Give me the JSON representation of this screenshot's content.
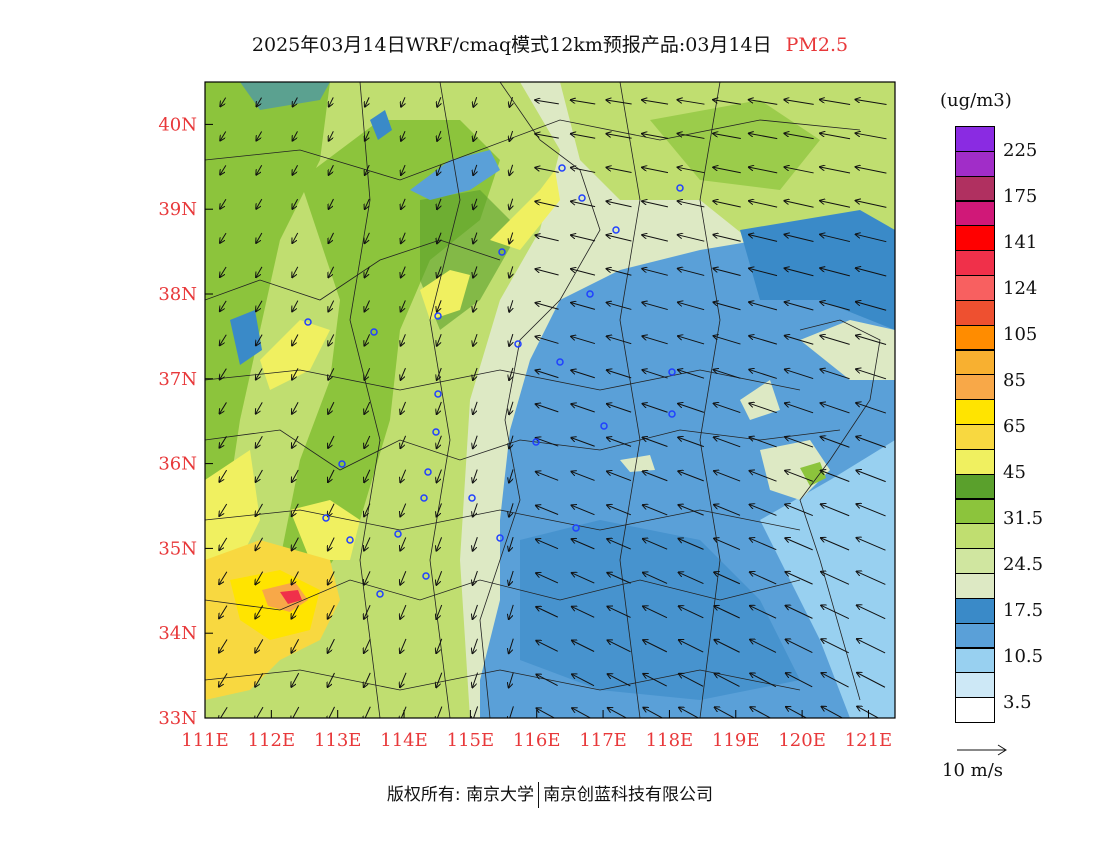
{
  "title": {
    "main": "2025年03月14日WRF/cmaq模式12km预报产品:03月14日",
    "pollutant": "PM2.5"
  },
  "colors": {
    "axis_label": "#e8383a",
    "pollutant_title": "#e8383a",
    "station_marker": "#2040ff"
  },
  "axes": {
    "x_ticks": [
      "111E",
      "112E",
      "113E",
      "114E",
      "115E",
      "116E",
      "117E",
      "118E",
      "119E",
      "120E",
      "121E"
    ],
    "y_ticks": [
      "33N",
      "34N",
      "35N",
      "36N",
      "37N",
      "38N",
      "39N",
      "40N"
    ],
    "lon_range": [
      111,
      121.4
    ],
    "lat_range": [
      33,
      40.5
    ]
  },
  "legend": {
    "unit": "(ug/m3)",
    "labels": [
      "225",
      "175",
      "141",
      "124",
      "105",
      "85",
      "65",
      "45",
      "31.5",
      "24.5",
      "17.5",
      "10.5",
      "3.5"
    ],
    "swatches": [
      "#8a2be2",
      "#a12dc8",
      "#b03060",
      "#d01878",
      "#ff0000",
      "#f0304a",
      "#f86060",
      "#ee5030",
      "#ff8c00",
      "#f8b030",
      "#f8a848",
      "#ffe400",
      "#f8d840",
      "#f0f060",
      "#5aa02c",
      "#8cc43c",
      "#c0de70",
      "#d0e6a0",
      "#dde9c4",
      "#3a8ac8",
      "#5aa0d8",
      "#98d0f0",
      "#cde8f6",
      "#ffffff"
    ]
  },
  "wind_reference": {
    "label": "10 m/s"
  },
  "footer": {
    "owner_prefix": "版权所有:",
    "org1": "南京大学",
    "org2": "南京创蓝科技有限公司"
  }
}
